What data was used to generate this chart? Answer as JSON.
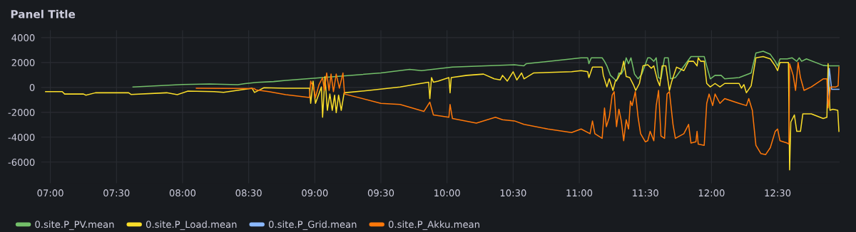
{
  "chart_data": {
    "type": "line",
    "title": "Panel Title",
    "xlim": [
      6.93,
      12.97
    ],
    "ylim": [
      -7700,
      4600
    ],
    "xticks": [
      {
        "value": 7,
        "label": "07:00"
      },
      {
        "value": 7.5,
        "label": "07:30"
      },
      {
        "value": 8,
        "label": "08:00"
      },
      {
        "value": 8.5,
        "label": "08:30"
      },
      {
        "value": 9,
        "label": "09:00"
      },
      {
        "value": 9.5,
        "label": "09:30"
      },
      {
        "value": 10,
        "label": "10:00"
      },
      {
        "value": 10.5,
        "label": "10:30"
      },
      {
        "value": 11,
        "label": "11:00"
      },
      {
        "value": 11.5,
        "label": "11:30"
      },
      {
        "value": 12,
        "label": "12:00"
      },
      {
        "value": 12.5,
        "label": "12:30"
      }
    ],
    "yticks": [
      -6000,
      -4000,
      -2000,
      0,
      2000,
      4000
    ],
    "grid": true,
    "legend": "bottom left",
    "marker": "none",
    "line_style": "solid",
    "series": [
      {
        "name": "0.site.P_PV.mean",
        "color": "#73bf69",
        "x": [
          7.625,
          8.0,
          8.203,
          8.418,
          8.472,
          8.562,
          8.688,
          8.78,
          9.5,
          9.717,
          9.807,
          10.04,
          10.51,
          10.58,
          10.6,
          10.942,
          11.014,
          11.064,
          11.073,
          11.091,
          11.173,
          11.191,
          11.209,
          11.236,
          11.264,
          11.282,
          11.3,
          11.318,
          11.336,
          11.355,
          11.373,
          11.391,
          11.418,
          11.445,
          11.473,
          11.518,
          11.536,
          11.564,
          11.582,
          11.6,
          11.618,
          11.645,
          11.673,
          11.691,
          11.727,
          11.845,
          11.9,
          11.945,
          11.964,
          11.991,
          12.027,
          12.073,
          12.1,
          12.209,
          12.3,
          12.336,
          12.391,
          12.445,
          12.482,
          12.5,
          12.518,
          12.573,
          12.609,
          12.645,
          12.664,
          12.682,
          12.718,
          12.845,
          12.882,
          12.964
        ],
        "values": [
          30,
          240,
          280,
          220,
          300,
          400,
          470,
          560,
          1160,
          1450,
          1350,
          1630,
          1820,
          1730,
          1910,
          2290,
          2380,
          2380,
          1910,
          2380,
          2380,
          2100,
          1730,
          970,
          690,
          510,
          1160,
          1070,
          1450,
          2380,
          1910,
          2380,
          1070,
          690,
          1070,
          2380,
          2380,
          2100,
          2380,
          790,
          690,
          2380,
          2380,
          690,
          790,
          2480,
          2480,
          2480,
          1730,
          690,
          970,
          970,
          690,
          790,
          1160,
          2760,
          2910,
          2660,
          2100,
          1730,
          2290,
          2290,
          2380,
          2100,
          2380,
          2100,
          2290,
          1770,
          1730,
          1730
        ]
      },
      {
        "name": "0.site.P_Load.mean",
        "color": "#fade2a",
        "x": [
          6.964,
          7.09,
          7.108,
          7.251,
          7.269,
          7.341,
          7.592,
          7.61,
          7.88,
          7.96,
          8.04,
          8.239,
          8.31,
          8.526,
          8.544,
          8.616,
          8.777,
          8.96,
          8.969,
          8.987,
          9.005,
          9.05,
          9.059,
          9.077,
          9.095,
          9.114,
          9.132,
          9.15,
          9.162,
          9.18,
          9.2,
          9.222,
          9.411,
          9.645,
          9.753,
          9.861,
          9.87,
          9.883,
          9.897,
          9.933,
          10.014,
          10.023,
          10.032,
          10.15,
          10.276,
          10.357,
          10.402,
          10.42,
          10.456,
          10.5,
          10.528,
          10.564,
          10.582,
          10.654,
          10.942,
          11.014,
          11.064,
          11.073,
          11.1,
          11.173,
          11.182,
          11.209,
          11.227,
          11.255,
          11.273,
          11.291,
          11.318,
          11.336,
          11.355,
          11.382,
          11.409,
          11.427,
          11.455,
          11.482,
          11.518,
          11.545,
          11.564,
          11.591,
          11.609,
          11.627,
          11.655,
          11.682,
          11.7,
          11.736,
          11.791,
          11.827,
          11.864,
          11.891,
          11.9,
          11.918,
          11.945,
          11.964,
          11.991,
          12.027,
          12.064,
          12.1,
          12.209,
          12.227,
          12.245,
          12.264,
          12.3,
          12.336,
          12.391,
          12.445,
          12.482,
          12.5,
          12.518,
          12.582,
          12.591,
          12.6,
          12.627,
          12.645,
          12.673,
          12.691,
          12.755,
          12.845,
          12.873,
          12.882,
          12.896,
          12.918,
          12.955,
          12.964
        ],
        "values": [
          -340,
          -340,
          -530,
          -530,
          -620,
          -430,
          -430,
          -560,
          -430,
          -580,
          -300,
          -340,
          -400,
          -70,
          -400,
          -20,
          -60,
          -60,
          -1280,
          510,
          -1280,
          40,
          -2400,
          880,
          -1840,
          -530,
          -1840,
          -620,
          -2030,
          -620,
          -1840,
          -430,
          -240,
          40,
          230,
          420,
          -900,
          790,
          420,
          510,
          790,
          -430,
          790,
          970,
          1070,
          690,
          600,
          970,
          510,
          1260,
          600,
          1160,
          690,
          1160,
          1260,
          1350,
          1260,
          790,
          1630,
          1630,
          970,
          40,
          690,
          -240,
          510,
          690,
          1260,
          2100,
          880,
          790,
          230,
          -240,
          320,
          1730,
          1820,
          1540,
          1730,
          600,
          130,
          1730,
          1730,
          -240,
          510,
          1630,
          1350,
          2100,
          2100,
          1730,
          2380,
          2100,
          2100,
          320,
          40,
          320,
          40,
          320,
          320,
          -60,
          230,
          -430,
          130,
          2380,
          2480,
          2290,
          1730,
          1350,
          2010,
          2010,
          -6620,
          -2780,
          -2210,
          -3530,
          -3530,
          -2120,
          -2120,
          -2500,
          -2400,
          1910,
          -1840,
          -1750,
          -1840,
          -3530
        ]
      },
      {
        "name": "0.site.P_Grid.mean",
        "color": "#8ab8ff",
        "x": [
          12.878,
          12.891,
          12.909,
          12.964
        ],
        "values": [
          -1280,
          1540,
          -150,
          -150
        ]
      },
      {
        "name": "0.site.P_Akku.mean",
        "color": "#ff780a",
        "x": [
          8.104,
          8.544,
          8.553,
          8.652,
          8.78,
          8.96,
          8.969,
          8.993,
          9.005,
          9.032,
          9.059,
          9.072,
          9.09,
          9.108,
          9.123,
          9.141,
          9.162,
          9.186,
          9.213,
          9.225,
          9.5,
          9.645,
          9.825,
          9.87,
          9.897,
          10.014,
          10.023,
          10.041,
          10.222,
          10.366,
          10.42,
          10.51,
          10.582,
          10.762,
          10.942,
          11.014,
          11.082,
          11.1,
          11.118,
          11.173,
          11.191,
          11.205,
          11.227,
          11.249,
          11.264,
          11.282,
          11.3,
          11.318,
          11.336,
          11.355,
          11.373,
          11.387,
          11.4,
          11.424,
          11.445,
          11.464,
          11.5,
          11.518,
          11.536,
          11.564,
          11.582,
          11.6,
          11.618,
          11.645,
          11.664,
          11.682,
          11.709,
          11.727,
          11.791,
          11.827,
          11.845,
          11.882,
          11.891,
          11.9,
          11.945,
          11.964,
          11.982,
          12.009,
          12.027,
          12.064,
          12.1,
          12.209,
          12.264,
          12.282,
          12.309,
          12.336,
          12.373,
          12.409,
          12.445,
          12.482,
          12.5,
          12.518,
          12.573,
          12.586,
          12.591,
          12.618,
          12.636,
          12.655,
          12.673,
          12.7,
          12.755,
          12.845,
          12.873,
          12.882,
          12.9,
          12.94,
          12.958,
          12.964
        ],
        "values": [
          -60,
          -100,
          -190,
          -340,
          -580,
          -810,
          510,
          -60,
          -810,
          230,
          790,
          -240,
          1160,
          -240,
          1070,
          -340,
          1070,
          -60,
          1160,
          -530,
          -1280,
          -1370,
          -1930,
          -1180,
          -2210,
          -2400,
          -1370,
          -2500,
          -2870,
          -2400,
          -2590,
          -2690,
          -2970,
          -3340,
          -3620,
          -3340,
          -3720,
          -2690,
          -3720,
          -4090,
          -1650,
          -3150,
          -2400,
          -620,
          -340,
          -3150,
          -1750,
          -2690,
          -4280,
          -2590,
          -3340,
          -1090,
          -1460,
          -340,
          -2400,
          -3720,
          -4370,
          -4280,
          -3530,
          -4280,
          -1460,
          -240,
          -3900,
          -4090,
          -530,
          -340,
          -2970,
          -4090,
          -3720,
          -2970,
          -4470,
          -4370,
          -3530,
          -4560,
          -4650,
          -1280,
          -530,
          -1460,
          -530,
          -1280,
          -900,
          -1280,
          -1460,
          -900,
          -1840,
          -4650,
          -5310,
          -5400,
          -4840,
          -3530,
          -3340,
          -4280,
          -4470,
          -4560,
          1910,
          970,
          -240,
          2010,
          790,
          -240,
          40,
          690,
          690,
          -1650,
          40,
          40,
          130,
          1630
        ]
      }
    ]
  }
}
